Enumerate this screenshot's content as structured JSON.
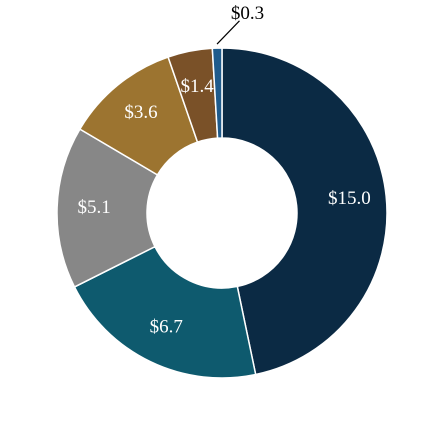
{
  "chart_data": {
    "type": "donut",
    "values": [
      15.0,
      6.7,
      5.1,
      3.6,
      1.4,
      0.3
    ],
    "value_labels": [
      "$15.0",
      "$6.7",
      "$5.1",
      "$3.6",
      "$1.4",
      "$0.3"
    ],
    "colors": [
      "#0b2a44",
      "#0e5a6e",
      "#878787",
      "#9c7430",
      "#7a5128",
      "#1f5b8c"
    ]
  }
}
